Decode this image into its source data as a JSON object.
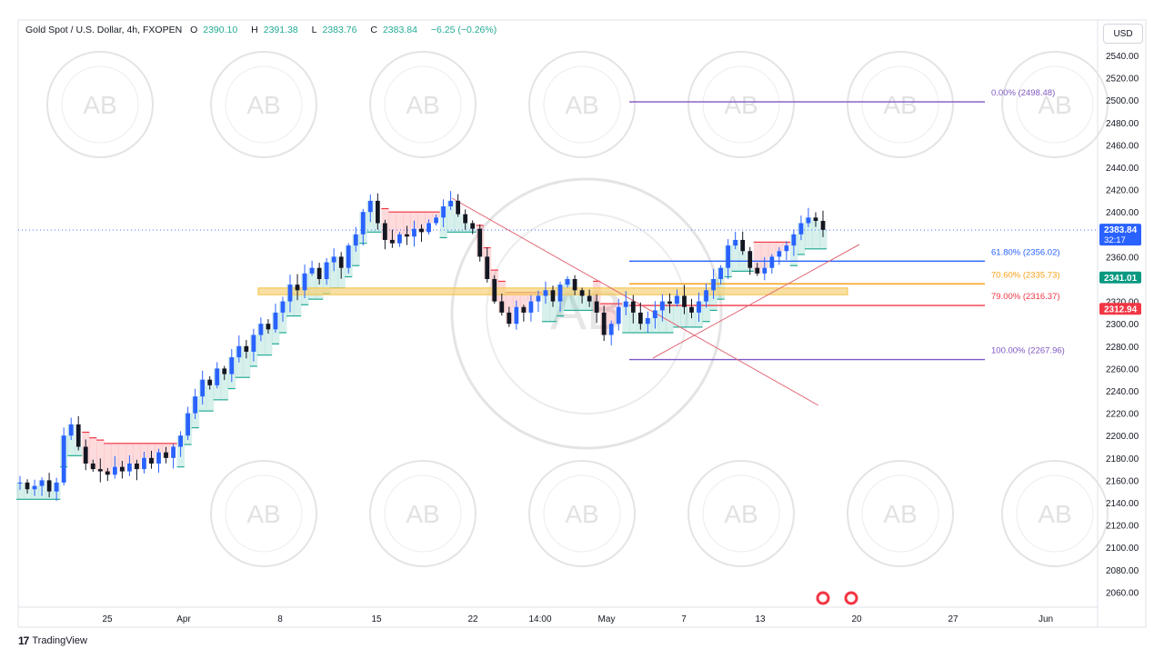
{
  "legend": {
    "symbol": "Gold Spot / U.S. Dollar, 4h, FXOPEN",
    "open_label": "O",
    "open": "2390.10",
    "high_label": "H",
    "high": "2391.38",
    "low_label": "L",
    "low": "2383.76",
    "close_label": "C",
    "close": "2383.84",
    "change": "−6.25 (−0.26%)"
  },
  "currency_button": "USD",
  "footer": {
    "brand": "TradingView",
    "logo": "17"
  },
  "watermark": {
    "letters": "AB",
    "text": "ARABIAN BUSINESS ACADEMY"
  },
  "colors": {
    "up": "#2962ff",
    "down": "#131722",
    "fib0": "#7e57c2",
    "fib618": "#2962ff",
    "fib706": "#f7a21b",
    "fib79": "#f23645",
    "zone": "#f5c242",
    "stop_green": "#22ab94",
    "stop_red": "#f23645",
    "trend": "#e06a78"
  },
  "chart_data": {
    "type": "candlestick",
    "ylim": [
      2040,
      2550
    ],
    "y_ticks": [
      "2540.00",
      "2520.00",
      "2500.00",
      "2480.00",
      "2460.00",
      "2440.00",
      "2420.00",
      "2400.00",
      "2380.00",
      "2360.00",
      "2340.00",
      "2320.00",
      "2300.00",
      "2280.00",
      "2260.00",
      "2240.00",
      "2220.00",
      "2200.00",
      "2180.00",
      "2160.00",
      "2140.00",
      "2120.00",
      "2100.00",
      "2080.00",
      "2060.00"
    ],
    "x_ticks": [
      "25",
      "Apr",
      "8",
      "15",
      "22",
      "14:00",
      "May",
      "7",
      "13",
      "20",
      "27",
      "Jun"
    ],
    "price_badges": [
      {
        "value": "2383.84",
        "sub": "32:17",
        "color": "#2962ff"
      },
      {
        "value": "2341.01",
        "color": "#089981"
      },
      {
        "value": "2312.94",
        "color": "#f23645"
      }
    ],
    "fibonacci": [
      {
        "label": "0.00% (2498.48)",
        "value": 2498.48,
        "color": "#7e57c2"
      },
      {
        "label": "61.80% (2356.02)",
        "value": 2356.02,
        "color": "#2962ff"
      },
      {
        "label": "70.60% (2335.73)",
        "value": 2335.73,
        "color": "#f7a21b"
      },
      {
        "label": "79.00% (2316.37)",
        "value": 2316.37,
        "color": "#f23645"
      },
      {
        "label": "100.00% (2267.96)",
        "value": 2267.96,
        "color": "#7e57c2"
      }
    ],
    "zone": {
      "low": 2326,
      "high": 2332
    },
    "last_price": 2383.84,
    "close_path": [
      2158,
      2152,
      2155,
      2160,
      2150,
      2158,
      2200,
      2210,
      2190,
      2175,
      2170,
      2168,
      2165,
      2172,
      2168,
      2175,
      2170,
      2180,
      2175,
      2185,
      2180,
      2190,
      2200,
      2220,
      2235,
      2250,
      2245,
      2260,
      2255,
      2270,
      2280,
      2275,
      2290,
      2300,
      2295,
      2310,
      2320,
      2335,
      2330,
      2345,
      2350,
      2340,
      2355,
      2360,
      2350,
      2370,
      2380,
      2400,
      2410,
      2390,
      2375,
      2372,
      2380,
      2378,
      2385,
      2382,
      2390,
      2395,
      2405,
      2410,
      2398,
      2390,
      2385,
      2360,
      2340,
      2320,
      2310,
      2300,
      2315,
      2310,
      2320,
      2325,
      2330,
      2320,
      2335,
      2340,
      2330,
      2325,
      2320,
      2310,
      2290,
      2300,
      2315,
      2320,
      2310,
      2300,
      2305,
      2312,
      2320,
      2318,
      2325,
      2315,
      2310,
      2320,
      2330,
      2340,
      2350,
      2370,
      2375,
      2365,
      2350,
      2345,
      2350,
      2360,
      2365,
      2370,
      2380,
      2390,
      2395,
      2392,
      2384
    ]
  }
}
